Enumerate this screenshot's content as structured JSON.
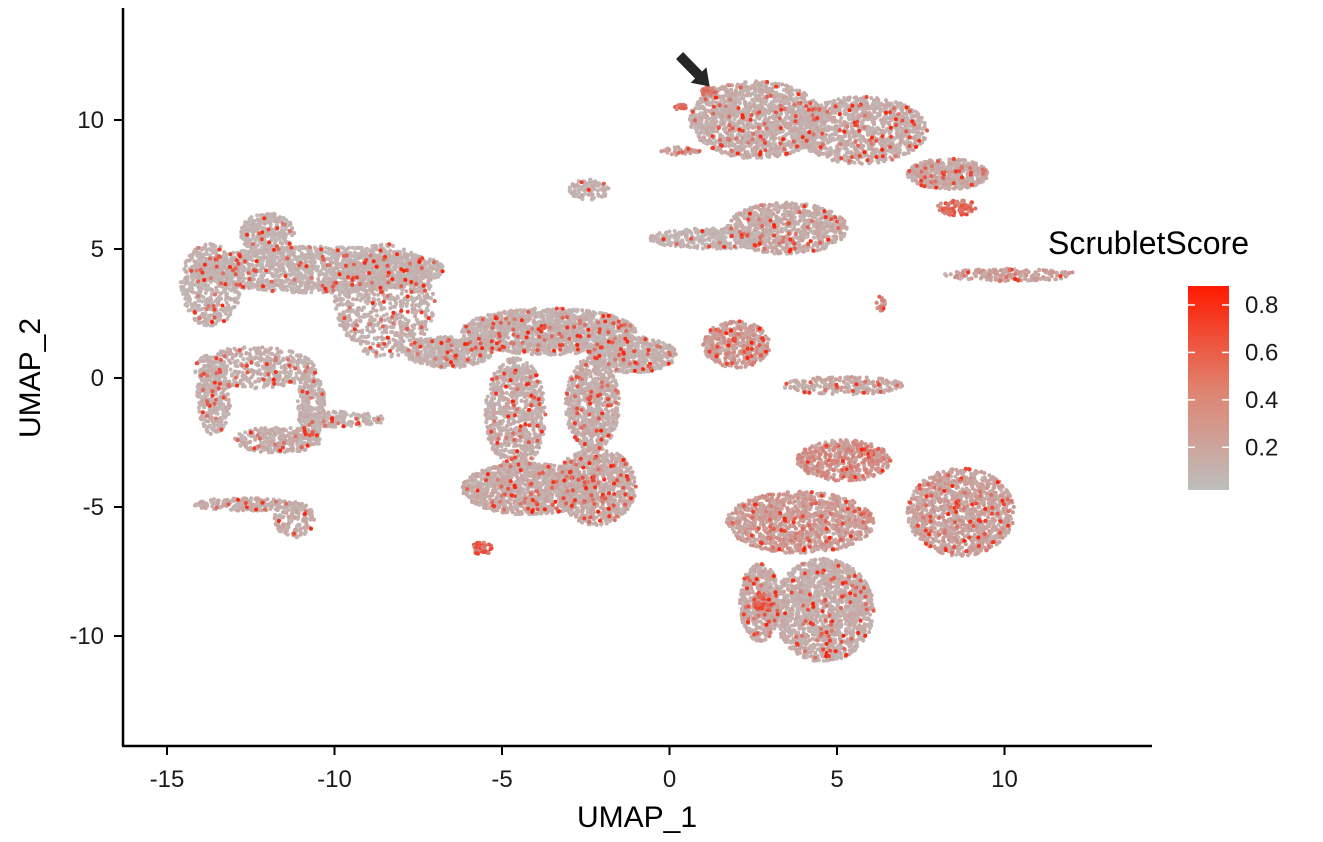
{
  "chart_data": {
    "type": "scatter",
    "xlabel": "UMAP_1",
    "ylabel": "UMAP_2",
    "xlim": [
      -16.3,
      14.5
    ],
    "ylim": [
      -14.3,
      14.2
    ],
    "x_ticks": [
      -15,
      -10,
      -5,
      0,
      5,
      10
    ],
    "y_ticks": [
      10,
      5,
      0,
      -5,
      -10
    ],
    "x_tick_labels": [
      "-15",
      "-10",
      "-5",
      "0",
      "5",
      "10"
    ],
    "y_tick_labels": [
      "10",
      "5",
      "0",
      "-5",
      "-10"
    ],
    "grid": false,
    "legend": {
      "title": "ScrubletScore",
      "placement": "right",
      "ticks": [
        0.8,
        0.6,
        0.4,
        0.2
      ],
      "tick_labels": [
        "0.8",
        "0.6",
        "0.4",
        "0.2"
      ],
      "range": [
        0.02,
        0.88
      ]
    },
    "colors": {
      "low": "#bebebe",
      "high": "#ff1a00",
      "arrow": "#262626"
    },
    "annotation": {
      "type": "arrow",
      "from": [
        0.3,
        12.5
      ],
      "to": [
        1.2,
        11.3
      ]
    },
    "clusters": [
      {
        "cx": -10.5,
        "cy": 4.2,
        "rx": 3.8,
        "ry": 0.9,
        "n": 1600,
        "score": 0.12
      },
      {
        "cx": -13.7,
        "cy": 3.6,
        "rx": 0.9,
        "ry": 1.6,
        "n": 500,
        "score": 0.12
      },
      {
        "cx": -12.0,
        "cy": 5.6,
        "rx": 0.8,
        "ry": 0.8,
        "n": 300,
        "score": 0.12
      },
      {
        "cx": -8.5,
        "cy": 3.0,
        "rx": 1.5,
        "ry": 2.2,
        "n": 800,
        "score": 0.14
      },
      {
        "cx": -12.4,
        "cy": 0.4,
        "rx": 1.8,
        "ry": 0.8,
        "n": 450,
        "score": 0.14
      },
      {
        "cx": -13.6,
        "cy": -0.7,
        "rx": 0.5,
        "ry": 1.5,
        "n": 350,
        "score": 0.14
      },
      {
        "cx": -11.7,
        "cy": -2.4,
        "rx": 1.3,
        "ry": 0.5,
        "n": 300,
        "score": 0.16
      },
      {
        "cx": -10.7,
        "cy": -1.0,
        "rx": 0.4,
        "ry": 1.4,
        "n": 250,
        "score": 0.14
      },
      {
        "cx": -9.8,
        "cy": -1.6,
        "rx": 1.3,
        "ry": 0.3,
        "n": 150,
        "score": 0.14
      },
      {
        "cx": -12.7,
        "cy": -4.9,
        "rx": 1.5,
        "ry": 0.25,
        "n": 180,
        "score": 0.18
      },
      {
        "cx": -11.2,
        "cy": -5.5,
        "rx": 0.6,
        "ry": 0.7,
        "n": 160,
        "score": 0.18
      },
      {
        "cx": -6.6,
        "cy": 1.0,
        "rx": 1.3,
        "ry": 0.6,
        "n": 500,
        "score": 0.14
      },
      {
        "cx": -3.6,
        "cy": 1.8,
        "rx": 2.6,
        "ry": 0.9,
        "n": 1500,
        "score": 0.14
      },
      {
        "cx": -1.1,
        "cy": 0.9,
        "rx": 1.3,
        "ry": 0.7,
        "n": 500,
        "score": 0.14
      },
      {
        "cx": -4.6,
        "cy": -1.4,
        "rx": 0.9,
        "ry": 2.2,
        "n": 800,
        "score": 0.16
      },
      {
        "cx": -2.3,
        "cy": -1.0,
        "rx": 0.8,
        "ry": 1.8,
        "n": 700,
        "score": 0.16
      },
      {
        "cx": -4.2,
        "cy": -4.3,
        "rx": 2.0,
        "ry": 1.0,
        "n": 1200,
        "score": 0.18
      },
      {
        "cx": -2.2,
        "cy": -4.2,
        "rx": 1.2,
        "ry": 1.5,
        "n": 900,
        "score": 0.18
      },
      {
        "cx": -5.6,
        "cy": -6.6,
        "rx": 0.3,
        "ry": 0.25,
        "n": 40,
        "score": 0.7
      },
      {
        "cx": 2.6,
        "cy": 10.0,
        "rx": 2.0,
        "ry": 1.5,
        "n": 1400,
        "score": 0.16
      },
      {
        "cx": 5.7,
        "cy": 9.6,
        "rx": 2.0,
        "ry": 1.3,
        "n": 1100,
        "score": 0.16
      },
      {
        "cx": 8.3,
        "cy": 7.9,
        "rx": 1.2,
        "ry": 0.6,
        "n": 500,
        "score": 0.2
      },
      {
        "cx": 8.6,
        "cy": 6.6,
        "rx": 0.6,
        "ry": 0.3,
        "n": 70,
        "score": 0.65
      },
      {
        "cx": 1.2,
        "cy": 11.1,
        "rx": 0.25,
        "ry": 0.2,
        "n": 35,
        "score": 0.5
      },
      {
        "cx": 3.5,
        "cy": 5.8,
        "rx": 1.8,
        "ry": 1.0,
        "n": 800,
        "score": 0.18
      },
      {
        "cx": 1.2,
        "cy": 5.4,
        "rx": 1.8,
        "ry": 0.4,
        "n": 350,
        "score": 0.12
      },
      {
        "cx": -2.4,
        "cy": 7.3,
        "rx": 0.6,
        "ry": 0.4,
        "n": 90,
        "score": 0.14
      },
      {
        "cx": 0.3,
        "cy": 8.8,
        "rx": 0.6,
        "ry": 0.15,
        "n": 40,
        "score": 0.25
      },
      {
        "cx": 0.3,
        "cy": 10.5,
        "rx": 0.2,
        "ry": 0.12,
        "n": 15,
        "score": 0.7
      },
      {
        "cx": 10.2,
        "cy": 4.0,
        "rx": 2.0,
        "ry": 0.25,
        "n": 180,
        "score": 0.28
      },
      {
        "cx": 2.0,
        "cy": 1.3,
        "rx": 1.0,
        "ry": 0.9,
        "n": 450,
        "score": 0.3
      },
      {
        "cx": 5.2,
        "cy": -0.3,
        "rx": 1.8,
        "ry": 0.35,
        "n": 220,
        "score": 0.2
      },
      {
        "cx": 6.3,
        "cy": 2.9,
        "rx": 0.15,
        "ry": 0.3,
        "n": 20,
        "score": 0.35
      },
      {
        "cx": 3.9,
        "cy": -5.6,
        "rx": 2.2,
        "ry": 1.2,
        "n": 1200,
        "score": 0.3
      },
      {
        "cx": 5.2,
        "cy": -3.2,
        "rx": 1.4,
        "ry": 0.8,
        "n": 500,
        "score": 0.35
      },
      {
        "cx": 8.7,
        "cy": -5.2,
        "rx": 1.6,
        "ry": 1.7,
        "n": 1200,
        "score": 0.25
      },
      {
        "cx": 4.6,
        "cy": -9.0,
        "rx": 1.5,
        "ry": 2.0,
        "n": 1500,
        "score": 0.16
      },
      {
        "cx": 2.7,
        "cy": -8.7,
        "rx": 0.6,
        "ry": 1.5,
        "n": 500,
        "score": 0.18
      },
      {
        "cx": 2.8,
        "cy": -8.7,
        "rx": 0.3,
        "ry": 0.35,
        "n": 40,
        "score": 0.7
      }
    ]
  }
}
